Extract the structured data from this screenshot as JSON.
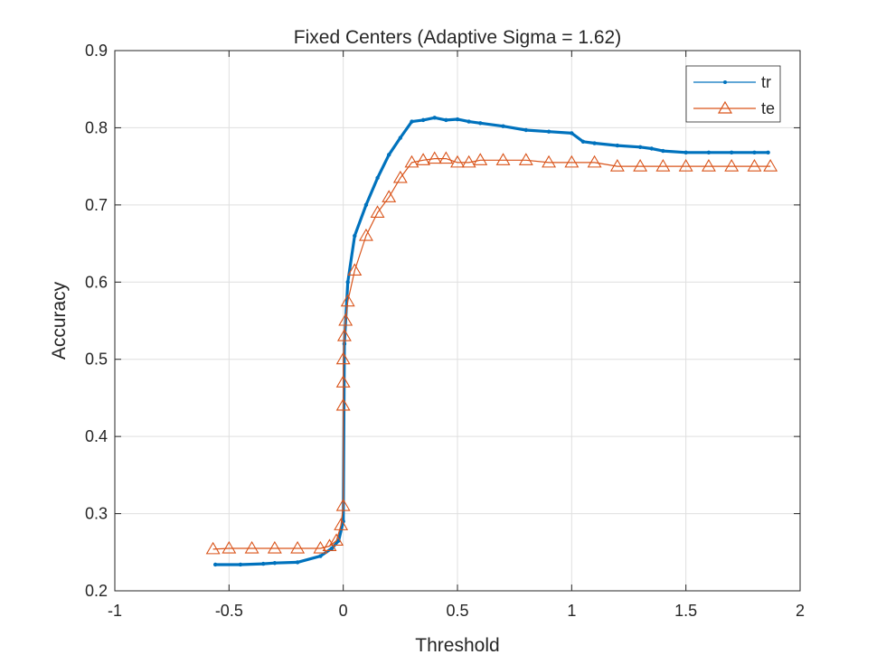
{
  "chart_data": {
    "type": "line",
    "title": "Fixed Centers (Adaptive Sigma = 1.62)",
    "xlabel": "Threshold",
    "ylabel": "Accuracy",
    "xlim": [
      -1,
      2
    ],
    "ylim": [
      0.2,
      0.9
    ],
    "xticks": [
      -1,
      -0.5,
      0,
      0.5,
      1,
      1.5,
      2
    ],
    "xtick_labels": [
      "-1",
      "-0.5",
      "0",
      "0.5",
      "1",
      "1.5",
      "2"
    ],
    "yticks": [
      0.2,
      0.3,
      0.4,
      0.5,
      0.6,
      0.7,
      0.8,
      0.9
    ],
    "ytick_labels": [
      "0.2",
      "0.3",
      "0.4",
      "0.5",
      "0.6",
      "0.7",
      "0.8",
      "0.9"
    ],
    "grid": true,
    "legend_position": "top-right",
    "series": [
      {
        "name": "tr",
        "color": "#0072BD",
        "marker": "dot",
        "x": [
          -0.56,
          -0.45,
          -0.35,
          -0.3,
          -0.2,
          -0.1,
          -0.05,
          -0.02,
          0.0,
          0.005,
          0.02,
          0.05,
          0.1,
          0.15,
          0.2,
          0.25,
          0.3,
          0.35,
          0.4,
          0.45,
          0.5,
          0.55,
          0.6,
          0.7,
          0.8,
          0.9,
          1.0,
          1.05,
          1.1,
          1.2,
          1.3,
          1.35,
          1.4,
          1.5,
          1.6,
          1.7,
          1.8,
          1.86
        ],
        "y": [
          0.234,
          0.234,
          0.235,
          0.236,
          0.237,
          0.245,
          0.255,
          0.265,
          0.29,
          0.52,
          0.6,
          0.66,
          0.7,
          0.735,
          0.765,
          0.787,
          0.808,
          0.81,
          0.813,
          0.81,
          0.811,
          0.808,
          0.806,
          0.802,
          0.797,
          0.795,
          0.793,
          0.782,
          0.78,
          0.777,
          0.775,
          0.773,
          0.77,
          0.768,
          0.768,
          0.768,
          0.768,
          0.768
        ]
      },
      {
        "name": "te",
        "color": "#D95319",
        "marker": "triangle",
        "x": [
          -0.57,
          -0.5,
          -0.4,
          -0.3,
          -0.2,
          -0.1,
          -0.06,
          -0.03,
          -0.01,
          0.0,
          0.0,
          0.0,
          0.0,
          0.005,
          0.01,
          0.02,
          0.05,
          0.1,
          0.15,
          0.2,
          0.25,
          0.3,
          0.35,
          0.4,
          0.45,
          0.5,
          0.55,
          0.6,
          0.7,
          0.8,
          0.9,
          1.0,
          1.1,
          1.2,
          1.3,
          1.4,
          1.5,
          1.6,
          1.7,
          1.8,
          1.87
        ],
        "y": [
          0.254,
          0.255,
          0.255,
          0.255,
          0.255,
          0.255,
          0.258,
          0.265,
          0.285,
          0.31,
          0.44,
          0.47,
          0.5,
          0.53,
          0.55,
          0.575,
          0.615,
          0.66,
          0.69,
          0.71,
          0.735,
          0.755,
          0.758,
          0.76,
          0.76,
          0.755,
          0.755,
          0.758,
          0.758,
          0.758,
          0.755,
          0.755,
          0.755,
          0.75,
          0.75,
          0.75,
          0.75,
          0.75,
          0.75,
          0.75,
          0.75
        ]
      }
    ]
  }
}
